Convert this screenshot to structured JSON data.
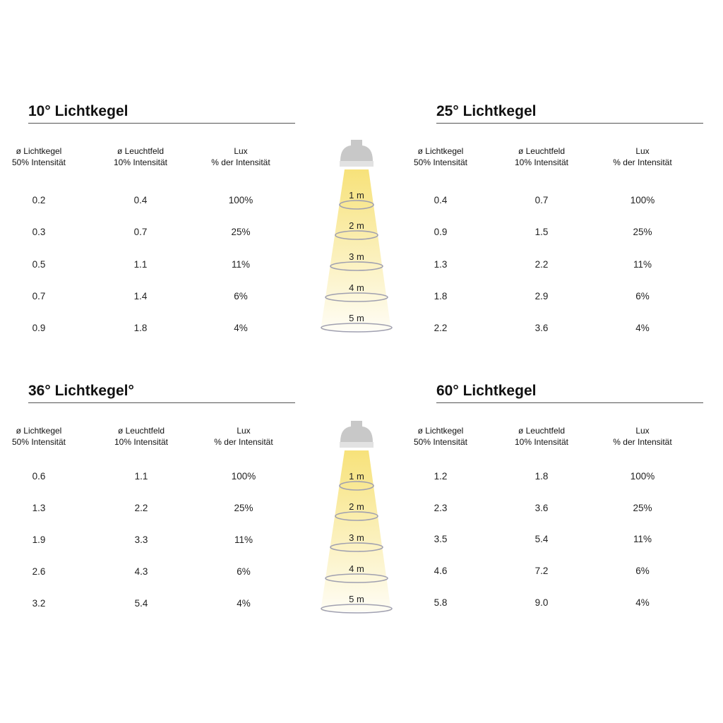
{
  "headers": [
    [
      "ø Lichtkegel",
      "50% Intensität"
    ],
    [
      "ø Leuchtfeld",
      "10% Intensität"
    ],
    [
      "Lux",
      "% der Intensität"
    ]
  ],
  "distances": [
    "1 m",
    "2 m",
    "3 m",
    "4 m",
    "5 m"
  ],
  "colors": {
    "beam": "#f7e27a",
    "lamp": "#c8c8c8",
    "ring": "#a0a0b0"
  },
  "panels": [
    {
      "title": "10° Lichtkegel",
      "rows": [
        [
          "0.2",
          "0.4",
          "100%"
        ],
        [
          "0.3",
          "0.7",
          "25%"
        ],
        [
          "0.5",
          "1.1",
          "11%"
        ],
        [
          "0.7",
          "1.4",
          "6%"
        ],
        [
          "0.9",
          "1.8",
          "4%"
        ]
      ]
    },
    {
      "title": "25° Lichtkegel",
      "rows": [
        [
          "0.4",
          "0.7",
          "100%"
        ],
        [
          "0.9",
          "1.5",
          "25%"
        ],
        [
          "1.3",
          "2.2",
          "11%"
        ],
        [
          "1.8",
          "2.9",
          "6%"
        ],
        [
          "2.2",
          "3.6",
          "4%"
        ]
      ]
    },
    {
      "title": "36° Lichtkegel°",
      "rows": [
        [
          "0.6",
          "1.1",
          "100%"
        ],
        [
          "1.3",
          "2.2",
          "25%"
        ],
        [
          "1.9",
          "3.3",
          "11%"
        ],
        [
          "2.6",
          "4.3",
          "6%"
        ],
        [
          "3.2",
          "5.4",
          "4%"
        ]
      ]
    },
    {
      "title": "60° Lichtkegel",
      "rows": [
        [
          "1.2",
          "1.8",
          "100%"
        ],
        [
          "2.3",
          "3.6",
          "25%"
        ],
        [
          "3.5",
          "5.4",
          "11%"
        ],
        [
          "4.6",
          "7.2",
          "6%"
        ],
        [
          "5.8",
          "9.0",
          "4%"
        ]
      ]
    }
  ]
}
